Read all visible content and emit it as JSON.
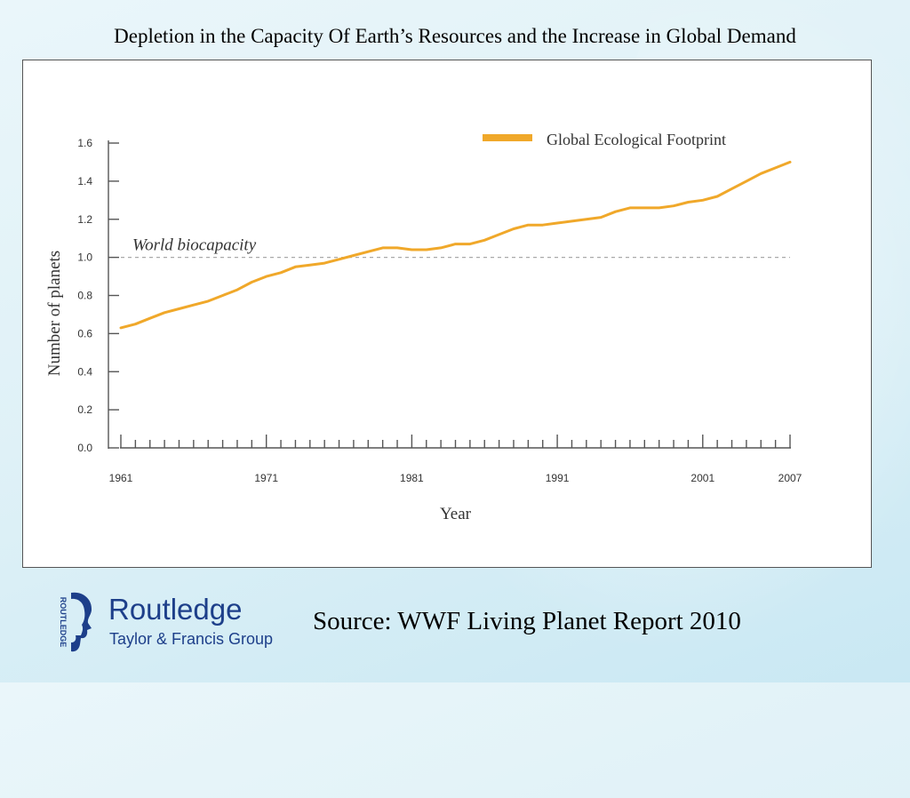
{
  "slide": {
    "title": "Depletion in the Capacity Of Earth’s Resources and the Increase in Global Demand",
    "source": "Source: WWF Living Planet Report 2010"
  },
  "logo": {
    "name": "Routledge",
    "subtitle": "Taylor & Francis Group",
    "vertical_text": "ROUTLEDGE",
    "color": "#1d3f8a"
  },
  "chart_data": {
    "type": "line",
    "title": "",
    "xlabel": "Year",
    "ylabel": "Number of planets",
    "xlim": [
      1961,
      2007
    ],
    "ylim": [
      0,
      1.6
    ],
    "x_tick_labels": [
      "1961",
      "1971",
      "1981",
      "1991",
      "2001",
      "2007"
    ],
    "y_tick_labels": [
      "0.0",
      "0.2",
      "0.4",
      "0.6",
      "0.8",
      "1.0",
      "1.2",
      "1.4",
      "1.6"
    ],
    "legend_position": "top-right",
    "grid": false,
    "series": [
      {
        "name": "Global Ecological Footprint",
        "color": "#f0a82a",
        "x": [
          1961,
          1962,
          1963,
          1964,
          1965,
          1966,
          1967,
          1968,
          1969,
          1970,
          1971,
          1972,
          1973,
          1974,
          1975,
          1976,
          1977,
          1978,
          1979,
          1980,
          1981,
          1982,
          1983,
          1984,
          1985,
          1986,
          1987,
          1988,
          1989,
          1990,
          1991,
          1992,
          1993,
          1994,
          1995,
          1996,
          1997,
          1998,
          1999,
          2000,
          2001,
          2002,
          2003,
          2004,
          2005,
          2006,
          2007
        ],
        "values": [
          0.63,
          0.65,
          0.68,
          0.71,
          0.73,
          0.75,
          0.77,
          0.8,
          0.83,
          0.87,
          0.9,
          0.92,
          0.95,
          0.96,
          0.97,
          0.99,
          1.01,
          1.03,
          1.05,
          1.05,
          1.04,
          1.04,
          1.05,
          1.07,
          1.07,
          1.09,
          1.12,
          1.15,
          1.17,
          1.17,
          1.18,
          1.19,
          1.2,
          1.21,
          1.24,
          1.26,
          1.26,
          1.26,
          1.27,
          1.29,
          1.3,
          1.32,
          1.36,
          1.4,
          1.44,
          1.47,
          1.5
        ]
      }
    ],
    "reference_line": {
      "label": "World biocapacity",
      "value": 1.0,
      "color": "#aaaaaa"
    }
  }
}
